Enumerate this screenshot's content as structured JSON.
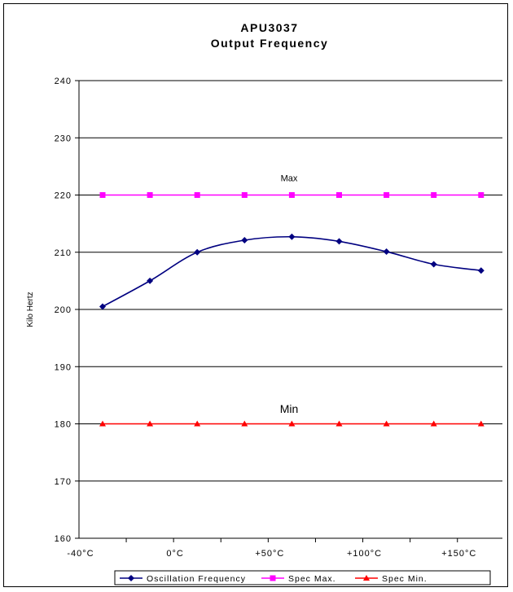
{
  "chart_data": {
    "type": "line",
    "title_line1": "APU3037",
    "title_line2": "Output Frequency",
    "ylabel": "Kilo Hertz",
    "xlabel": "",
    "ylim": [
      160,
      240
    ],
    "yticks": [
      160,
      170,
      180,
      190,
      200,
      210,
      220,
      230,
      240
    ],
    "grid": true,
    "x_tick_labels": [
      "-40°C",
      "0°C",
      "+50°C",
      "+100°C",
      "+150°C"
    ],
    "categories_count": 9,
    "annotations": [
      {
        "text": "Max",
        "y": 223
      },
      {
        "text": "Min",
        "y": 182.5
      }
    ],
    "legend_position": "bottom",
    "series": [
      {
        "name": "Oscillation Frequency",
        "color": "#000080",
        "marker": "diamond",
        "smooth": true,
        "values": [
          200.5,
          205.0,
          210.0,
          212.1,
          212.7,
          211.9,
          210.1,
          207.9,
          206.8
        ]
      },
      {
        "name": "Spec Max.",
        "color": "#FF00FF",
        "marker": "square",
        "smooth": false,
        "values": [
          220,
          220,
          220,
          220,
          220,
          220,
          220,
          220,
          220
        ]
      },
      {
        "name": "Spec Min.",
        "color": "#FF0000",
        "marker": "triangle",
        "smooth": false,
        "values": [
          180,
          180,
          180,
          180,
          180,
          180,
          180,
          180,
          180
        ]
      }
    ]
  }
}
